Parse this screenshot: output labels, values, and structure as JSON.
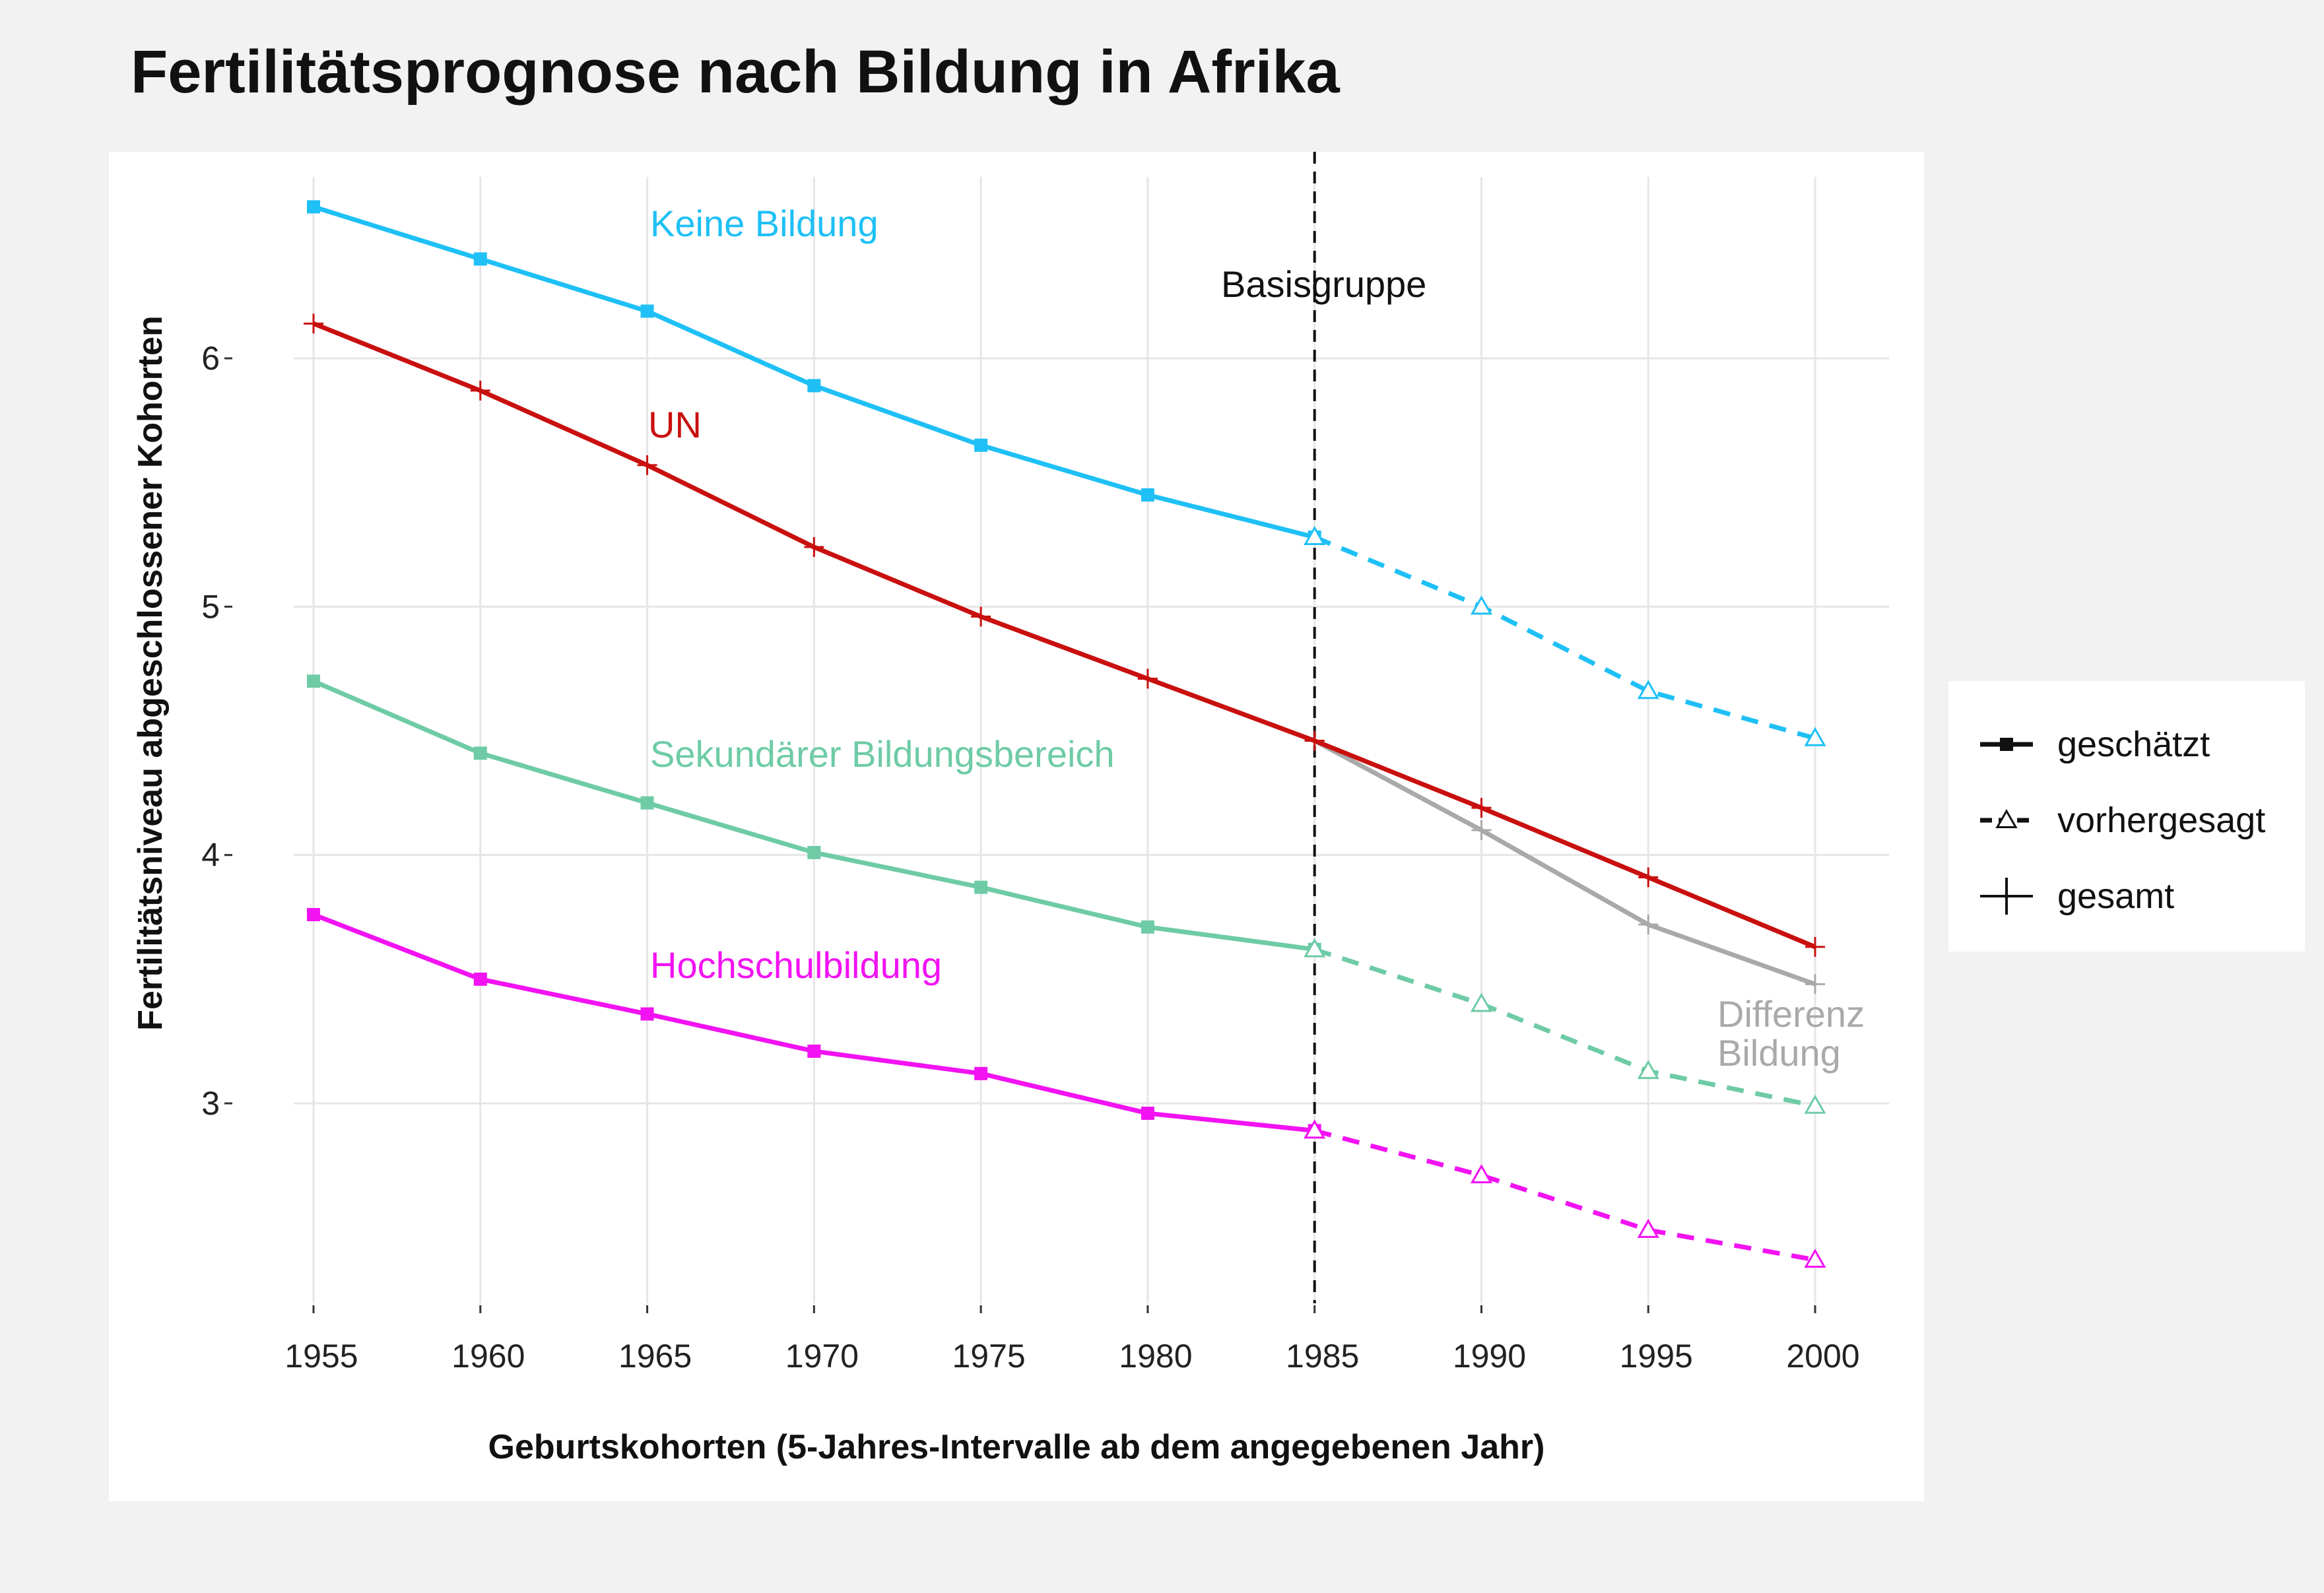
{
  "chart_data": {
    "type": "line",
    "title": "Fertilitätsprognose nach Bildung in Afrika",
    "xlabel": "Geburtskohorten (5-Jahres-Intervalle ab dem angegebenen Jahr)",
    "ylabel": "Fertilitätsniveau abgeschlossener Kohorten",
    "x": [
      1955,
      1960,
      1965,
      1970,
      1975,
      1980,
      1985,
      1990,
      1995,
      2000
    ],
    "x_tick_labels": [
      "1955",
      "1960",
      "1965",
      "1970",
      "1975",
      "1980",
      "1985",
      "1990",
      "1995",
      "2000"
    ],
    "y_ticks": [
      3,
      4,
      5,
      6
    ],
    "y_tick_labels": [
      "3",
      "4",
      "5",
      "6"
    ],
    "xlim": [
      1955,
      2000
    ],
    "ylim": [
      2.2,
      6.8
    ],
    "grid": true,
    "reference_line": {
      "x": 1985,
      "label": "Basisgruppe",
      "style": "dashed"
    },
    "series": [
      {
        "name": "Keine Bildung",
        "color": "#1ec0f5",
        "marker": "square",
        "estimated": [
          [
            1955,
            6.61
          ],
          [
            1960,
            6.4
          ],
          [
            1965,
            6.19
          ],
          [
            1970,
            5.89
          ],
          [
            1975,
            5.65
          ],
          [
            1980,
            5.45
          ],
          [
            1985,
            5.28
          ]
        ],
        "projected": [
          [
            1985,
            5.28
          ],
          [
            1990,
            5.0
          ],
          [
            1995,
            4.66
          ],
          [
            2000,
            4.47
          ]
        ]
      },
      {
        "name": "UN",
        "color": "#c8100f",
        "marker": "plus",
        "total": [
          [
            1955,
            6.14
          ],
          [
            1960,
            5.87
          ],
          [
            1965,
            5.57
          ],
          [
            1970,
            5.24
          ],
          [
            1975,
            4.96
          ],
          [
            1980,
            4.71
          ],
          [
            1985,
            4.46
          ],
          [
            1990,
            4.19
          ],
          [
            1995,
            3.91
          ],
          [
            2000,
            3.63
          ]
        ]
      },
      {
        "name": "Sekundärer Bildungsbereich",
        "color": "#6ecba6",
        "marker": "square",
        "estimated": [
          [
            1955,
            4.7
          ],
          [
            1960,
            4.41
          ],
          [
            1965,
            4.21
          ],
          [
            1970,
            4.01
          ],
          [
            1975,
            3.87
          ],
          [
            1980,
            3.71
          ],
          [
            1985,
            3.62
          ]
        ],
        "projected": [
          [
            1985,
            3.62
          ],
          [
            1990,
            3.4
          ],
          [
            1995,
            3.13
          ],
          [
            2000,
            2.99
          ]
        ]
      },
      {
        "name": "Hochschulbildung",
        "color": "#f212f2",
        "marker": "square",
        "estimated": [
          [
            1955,
            3.76
          ],
          [
            1960,
            3.5
          ],
          [
            1965,
            3.36
          ],
          [
            1970,
            3.21
          ],
          [
            1975,
            3.12
          ],
          [
            1980,
            2.96
          ],
          [
            1985,
            2.89
          ]
        ],
        "projected": [
          [
            1985,
            2.89
          ],
          [
            1990,
            2.71
          ],
          [
            1995,
            2.49
          ],
          [
            2000,
            2.37
          ]
        ]
      },
      {
        "name": "Differenz Bildung",
        "color": "#a9a9a9",
        "marker": "plus",
        "total": [
          [
            1985,
            4.46
          ],
          [
            1990,
            4.1
          ],
          [
            1995,
            3.72
          ],
          [
            2000,
            3.48
          ]
        ]
      }
    ],
    "annotations": [
      {
        "text": "Keine Bildung",
        "color": "#1ec0f5"
      },
      {
        "text": "UN",
        "color": "#c8100f"
      },
      {
        "text": "Sekundärer Bildungsbereich",
        "color": "#6ecba6"
      },
      {
        "text": "Hochschulbildung",
        "color": "#f212f2"
      },
      {
        "text": "Differenz",
        "color": "#a9a9a9"
      },
      {
        "text": "Bildung",
        "color": "#a9a9a9"
      },
      {
        "text": "Basisgruppe",
        "color": "#111111"
      }
    ],
    "legend": {
      "placement": "right",
      "items": [
        {
          "label": "geschätzt",
          "marker": "square",
          "line": "solid"
        },
        {
          "label": "vorhergesagt",
          "marker": "triangle-open",
          "line": "dashed"
        },
        {
          "label": "gesamt",
          "marker": "plus",
          "line": "none"
        }
      ]
    }
  }
}
